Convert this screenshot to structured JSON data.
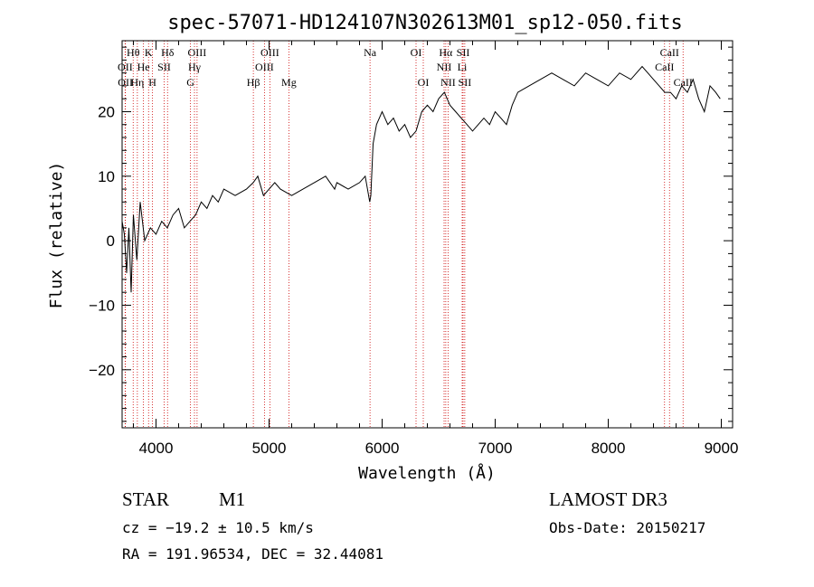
{
  "chart_data": {
    "type": "line",
    "title": "spec-57071-HD124107N302613M01_sp12-050.fits",
    "xlabel": "Wavelength (Å)",
    "ylabel": "Flux (relative)",
    "xlim": [
      3700,
      9100
    ],
    "ylim": [
      -29,
      31
    ],
    "xticks": [
      4000,
      5000,
      6000,
      7000,
      8000,
      9000
    ],
    "yticks": [
      -20,
      -10,
      0,
      10,
      20
    ],
    "series": [
      {
        "name": "flux",
        "x": [
          3700,
          3720,
          3740,
          3760,
          3780,
          3800,
          3830,
          3860,
          3900,
          3950,
          4000,
          4050,
          4100,
          4150,
          4200,
          4250,
          4300,
          4350,
          4400,
          4450,
          4500,
          4550,
          4600,
          4700,
          4800,
          4860,
          4900,
          4950,
          5000,
          5050,
          5100,
          5200,
          5300,
          5400,
          5500,
          5580,
          5600,
          5700,
          5800,
          5850,
          5890,
          5900,
          5920,
          5950,
          6000,
          6050,
          6100,
          6150,
          6200,
          6250,
          6300,
          6350,
          6400,
          6450,
          6500,
          6550,
          6600,
          6650,
          6700,
          6750,
          6800,
          6850,
          6900,
          6950,
          7000,
          7050,
          7100,
          7150,
          7200,
          7300,
          7400,
          7500,
          7600,
          7700,
          7800,
          7900,
          8000,
          8100,
          8200,
          8300,
          8350,
          8400,
          8450,
          8500,
          8550,
          8600,
          8650,
          8700,
          8750,
          8800,
          8850,
          8900,
          8950,
          8990
        ],
        "values": [
          3,
          1,
          -5,
          2,
          -8,
          4,
          -3,
          6,
          0,
          2,
          1,
          3,
          2,
          4,
          5,
          2,
          3,
          4,
          6,
          5,
          7,
          6,
          8,
          7,
          8,
          9,
          10,
          7,
          8,
          9,
          8,
          7,
          8,
          9,
          10,
          8,
          9,
          8,
          9,
          10,
          6,
          7,
          15,
          18,
          20,
          18,
          19,
          17,
          18,
          16,
          17,
          20,
          21,
          20,
          22,
          23,
          21,
          20,
          19,
          18,
          17,
          18,
          19,
          18,
          20,
          19,
          18,
          21,
          23,
          24,
          25,
          26,
          25,
          24,
          26,
          25,
          24,
          26,
          25,
          27,
          26,
          25,
          24,
          23,
          23,
          22,
          24,
          23,
          25,
          22,
          20,
          24,
          23,
          22
        ]
      }
    ],
    "emission_lines": [
      {
        "label": "Hθ",
        "wavelength": 3798
      },
      {
        "label": "K",
        "wavelength": 3934
      },
      {
        "label": "Hδ",
        "wavelength": 4102
      },
      {
        "label": "OIII",
        "wavelength": 4363
      },
      {
        "label": "OIII",
        "wavelength": 5007
      },
      {
        "label": "Na",
        "wavelength": 5893
      },
      {
        "label": "OI",
        "wavelength": 6300
      },
      {
        "label": "Hα",
        "wavelength": 6563
      },
      {
        "label": "SII",
        "wavelength": 6716
      },
      {
        "label": "CaII",
        "wavelength": 8542
      }
    ],
    "lines_row2": [
      {
        "label": "OII",
        "wavelength": 3727
      },
      {
        "label": "He",
        "wavelength": 3889
      },
      {
        "label": "SII",
        "wavelength": 4072
      },
      {
        "label": "Hγ",
        "wavelength": 4340
      },
      {
        "label": "OIII",
        "wavelength": 4959
      },
      {
        "label": "NII",
        "wavelength": 6548
      },
      {
        "label": "Li",
        "wavelength": 6708
      },
      {
        "label": "CaII",
        "wavelength": 8498
      }
    ],
    "lines_row3": [
      {
        "label": "OII",
        "wavelength": 3729
      },
      {
        "label": "Hη",
        "wavelength": 3835
      },
      {
        "label": "H",
        "wavelength": 3969
      },
      {
        "label": "G",
        "wavelength": 4305
      },
      {
        "label": "Hβ",
        "wavelength": 4861
      },
      {
        "label": "Mg",
        "wavelength": 5175
      },
      {
        "label": "OI",
        "wavelength": 6364
      },
      {
        "label": "NII",
        "wavelength": 6583
      },
      {
        "label": "SII",
        "wavelength": 6731
      },
      {
        "label": "CaII",
        "wavelength": 8662
      }
    ]
  },
  "info": {
    "class": "STAR",
    "subclass": "M1",
    "survey": "LAMOST DR3",
    "cz": "cz = −19.2 ± 10.5 km/s",
    "obs_date": "Obs-Date: 20150217",
    "radec": "RA = 191.96534, DEC =  32.44081"
  }
}
